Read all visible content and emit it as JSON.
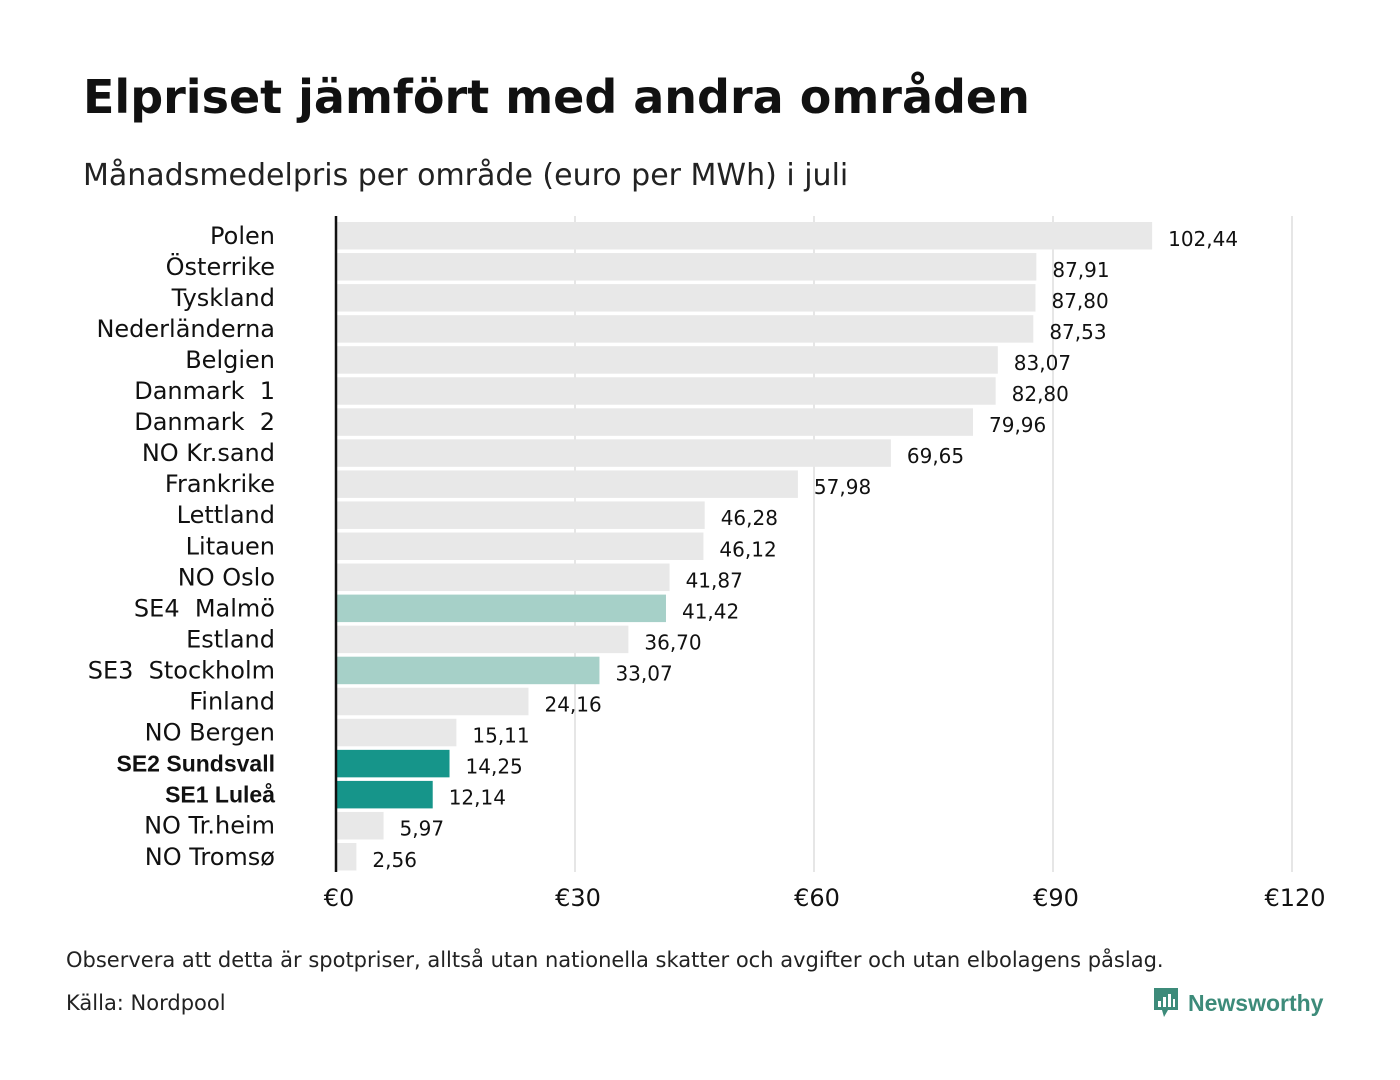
{
  "header": {
    "title": "Elpriset jämfört med andra områden",
    "subtitle": "Månadsmedelpris per område (euro per MWh) i juli"
  },
  "footer": {
    "note": "Observera att detta är spotpriser, alltså utan nationella skatter och avgifter och utan elbolagens påslag.",
    "source": "Källa: Nordpool",
    "brand": "Newsworthy"
  },
  "colors": {
    "default_bar": "#e8e8e8",
    "light_highlight": "#a6d0c8",
    "strong_highlight": "#16958a",
    "brand": "#3d8b7a",
    "grid": "#cccccc",
    "axis": "#111111"
  },
  "chart_data": {
    "type": "bar",
    "orientation": "horizontal",
    "title": "Elpriset jämfört med andra områden",
    "subtitle": "Månadsmedelpris per område (euro per MWh) i juli",
    "xlim": [
      0,
      120
    ],
    "xticks": [
      0,
      30,
      60,
      90,
      120
    ],
    "xtick_labels": [
      "€0",
      "€30",
      "€60",
      "€90",
      "€120"
    ],
    "grid": "vertical",
    "categories": [
      "Polen",
      "Österrike",
      "Tyskland",
      "Nederländerna",
      "Belgien",
      "Danmark  1",
      "Danmark  2",
      "NO Kr.sand",
      "Frankrike",
      "Lettland",
      "Litauen",
      "NO Oslo",
      "SE4  Malmö",
      "Estland",
      "SE3  Stockholm",
      "Finland",
      "NO Bergen",
      "SE2 Sundsvall",
      "SE1 Luleå",
      "NO Tr.heim",
      "NO Tromsø"
    ],
    "values": [
      102.44,
      87.91,
      87.8,
      87.53,
      83.07,
      82.8,
      79.96,
      69.65,
      57.98,
      46.28,
      46.12,
      41.87,
      41.42,
      36.7,
      33.07,
      24.16,
      15.11,
      14.25,
      12.14,
      5.97,
      2.56
    ],
    "value_labels": [
      "102,44",
      "87,91",
      "87,80",
      "87,53",
      "83,07",
      "82,80",
      "79,96",
      "69,65",
      "57,98",
      "46,28",
      "46,12",
      "41,87",
      "41,42",
      "36,70",
      "33,07",
      "24,16",
      "15,11",
      "14,25",
      "12,14",
      "5,97",
      "2,56"
    ],
    "highlight": [
      "none",
      "none",
      "none",
      "none",
      "none",
      "none",
      "none",
      "none",
      "none",
      "none",
      "none",
      "none",
      "light",
      "none",
      "light",
      "none",
      "none",
      "strong",
      "strong",
      "none",
      "none"
    ]
  }
}
